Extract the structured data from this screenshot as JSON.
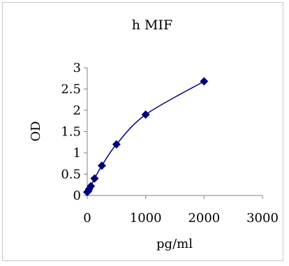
{
  "chart_data": {
    "type": "scatter",
    "title": "h MIF",
    "xlabel": "pg/ml",
    "ylabel": "OD",
    "xlim": [
      0,
      3000
    ],
    "ylim": [
      0,
      3
    ],
    "xticks": [
      "0",
      "1000",
      "2000",
      "3000"
    ],
    "yticks": [
      "0",
      "0.5",
      "1",
      "1.5",
      "2",
      "2.5",
      "3"
    ],
    "grid": false,
    "legend": "none",
    "trendline": true,
    "series": [
      {
        "x": [
          0,
          15.6,
          31.2,
          62.5,
          125,
          250,
          500,
          1000,
          2000
        ],
        "y": [
          0.08,
          0.1,
          0.15,
          0.22,
          0.4,
          0.7,
          1.2,
          1.9,
          2.68
        ]
      }
    ],
    "colors": {
      "marker": "#00007f",
      "line": "#00007f",
      "axis": "#808080"
    }
  }
}
